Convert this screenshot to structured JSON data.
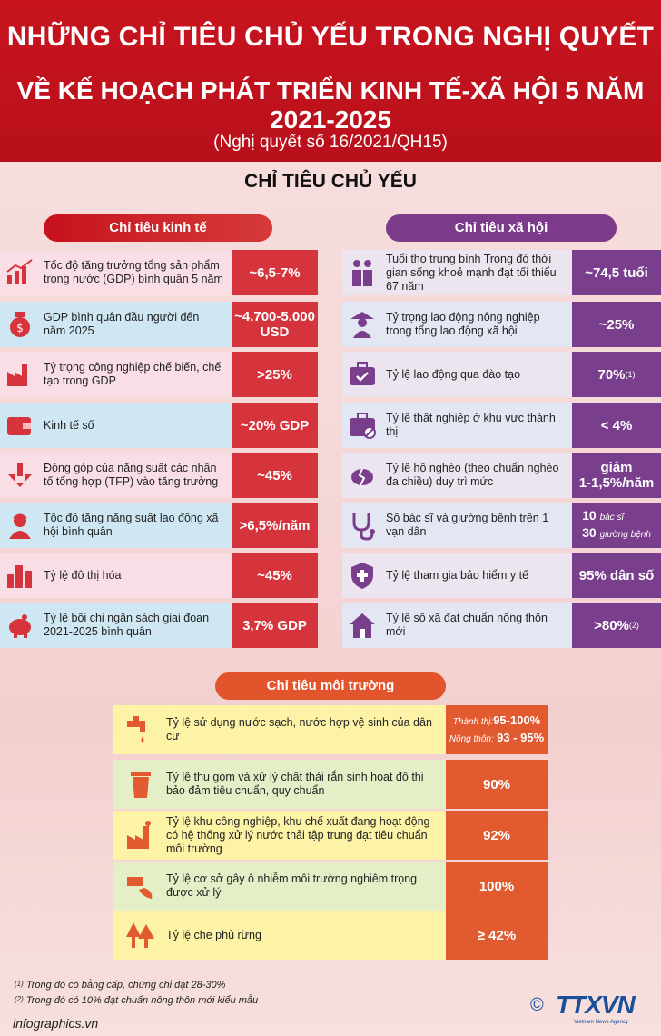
{
  "header": {
    "line1": "NHỮNG CHỈ TIÊU CHỦ YẾU TRONG NGHỊ QUYẾT",
    "line2": "VỀ KẾ HOẠCH PHÁT TRIỂN KINH TẾ-XÃ HỘI 5 NĂM 2021-2025",
    "line3": "(Nghị quyết số 16/2021/QH15)"
  },
  "main_title": "CHỈ TIÊU CHỦ YẾU",
  "economic": {
    "title": "Chỉ tiêu kinh tế",
    "rows": [
      {
        "icon": "growth-chart-icon",
        "text": "Tốc độ tăng trưởng tổng sản phẩm trong nước (GDP) bình quân 5 năm",
        "value": "~6,5-7%"
      },
      {
        "icon": "money-bag-icon",
        "text": "GDP bình quân đầu người đến năm 2025",
        "value": "~4.700-5.000 USD"
      },
      {
        "icon": "factory-icon",
        "text": "Tỷ trọng công nghiệp chế biến, chế tạo trong GDP",
        "value": ">25%"
      },
      {
        "icon": "digital-wallet-icon",
        "text": "Kinh tế số",
        "value": "~20% GDP"
      },
      {
        "icon": "productivity-icon",
        "text": "Đóng góp của năng suất các nhân tố tổng hợp (TFP) vào tăng trưởng",
        "value": "~45%"
      },
      {
        "icon": "worker-icon",
        "text": "Tốc độ tăng năng suất lao động xã hội bình quân",
        "value": ">6,5%/năm"
      },
      {
        "icon": "city-icon",
        "text": "Tỷ lệ đô thị hóa",
        "value": "~45%"
      },
      {
        "icon": "piggy-bank-icon",
        "text": "Tỷ lệ bội chi ngân sách giai đoạn 2021-2025 bình quân",
        "value": "3,7% GDP"
      }
    ]
  },
  "social": {
    "title": "Chỉ tiêu xã hội",
    "rows": [
      {
        "icon": "elderly-couple-icon",
        "text": "Tuổi thọ trung bình Trong đó thời gian sống khoẻ mạnh đạt tối thiểu 67 năm",
        "value": "~74,5 tuổi"
      },
      {
        "icon": "farmer-icon",
        "text": "Tỷ trọng lao động nông nghiệp trong tổng lao động xã hội",
        "value": "~25%"
      },
      {
        "icon": "briefcase-check-icon",
        "text": "Tỷ lệ lao động qua đào tạo",
        "value": "70%",
        "sup": "(1)"
      },
      {
        "icon": "briefcase-cancel-icon",
        "text": "Tỷ lệ thất nghiệp ở khu vực thành thị",
        "value": "< 4%"
      },
      {
        "icon": "broken-piggy-icon",
        "text": "Tỷ lệ hộ nghèo (theo chuẩn nghèo đa chiều) duy trì mức",
        "value_line1": "giảm",
        "value_line2": "1-1,5%/năm"
      },
      {
        "icon": "stethoscope-icon",
        "text": "Số bác sĩ và giường bệnh trên 1 vạn dân",
        "value_num1": "10",
        "value_unit1": "bác sĩ",
        "value_num2": "30",
        "value_unit2": "giường bệnh"
      },
      {
        "icon": "health-insurance-icon",
        "text": "Tỷ lệ tham gia bảo hiểm y tế",
        "value": "95% dân số"
      },
      {
        "icon": "rural-house-icon",
        "text": "Tỷ lệ số xã đạt chuẩn nông thôn mới",
        "value": ">80%",
        "sup": "(2)"
      }
    ]
  },
  "environment": {
    "title": "Chỉ tiêu môi trường",
    "rows": [
      {
        "icon": "water-tap-icon",
        "text": "Tỷ lệ sử dụng nước sạch, nước hợp vệ sinh của dân cư",
        "label1": "Thành thị:",
        "value1": "95-100%",
        "label2": "Nông thôn:",
        "value2": "93 - 95%"
      },
      {
        "icon": "trash-bin-icon",
        "text": "Tỷ lệ thu gom và xử lý chất thải rắn sinh hoạt đô thị bảo đảm tiêu chuẩn, quy chuẩn",
        "value": "90%"
      },
      {
        "icon": "industrial-plant-icon",
        "text": "Tỷ lệ khu công nghiệp, khu chế xuất đang hoạt động có hệ thống xử lý nước thải tập trung đạt tiêu chuẩn môi trường",
        "value": "92%"
      },
      {
        "icon": "pollution-pipe-icon",
        "text": "Tỷ lệ cơ sở gây ô nhiễm môi trường nghiêm trọng được xử lý",
        "value": "100%"
      },
      {
        "icon": "forest-icon",
        "text": "Tỷ lệ che phủ rừng",
        "value": "≥ 42%"
      }
    ]
  },
  "footnotes": {
    "n1_mark": "(1)",
    "n1": "Trong đó có bằng cấp, chứng chỉ đạt 28-30%",
    "n2_mark": "(2)",
    "n2": "Trong đó có 10% đạt chuẩn nông thôn mới kiểu mẫu"
  },
  "site": "infographics.vn",
  "logo": {
    "copyright": "©",
    "brand": "TTXVN",
    "sub": "Vietnam News Agency"
  },
  "colors": {
    "header_red": "#c8141f",
    "econ_red": "#d6343d",
    "social_purple": "#7a3f8c",
    "env_orange": "#e15a30"
  }
}
